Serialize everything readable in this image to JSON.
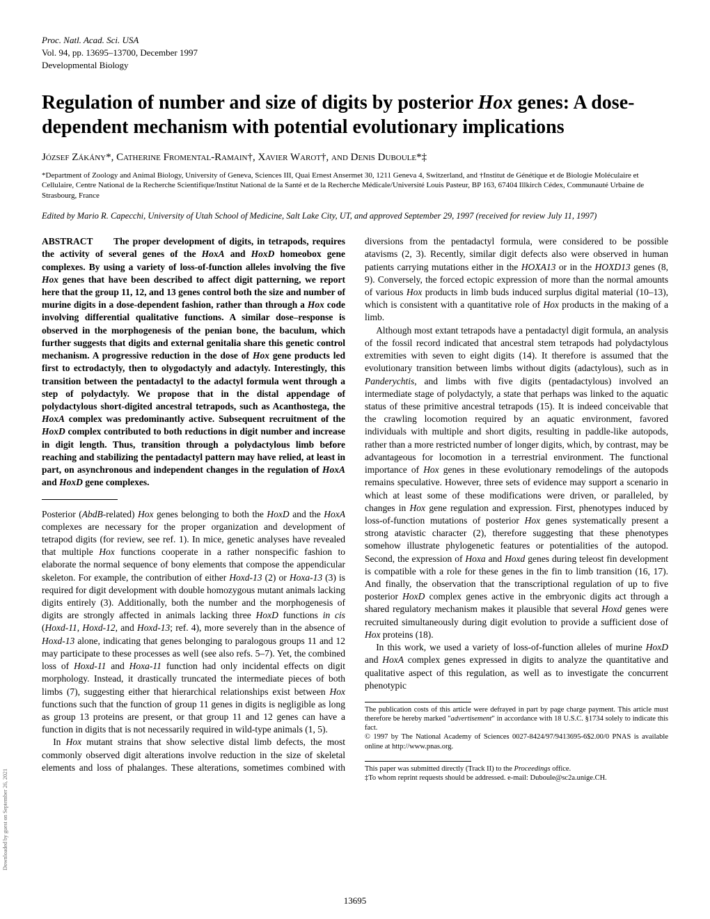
{
  "header": {
    "journal": "Proc. Natl. Acad. Sci. USA",
    "volume_line": "Vol. 94, pp. 13695–13700, December 1997",
    "department": "Developmental Biology"
  },
  "title_parts": {
    "p1": "Regulation of number and size of digits by posterior ",
    "p2": "Hox",
    "p3": " genes: A dose-dependent mechanism with potential evolutionary implications"
  },
  "authors": "József Zákány*, Catherine Fromental-Ramain†, Xavier Warot†, and Denis Duboule*‡",
  "affiliations": "*Department of Zoology and Animal Biology, University of Geneva, Sciences III, Quai Ernest Ansermet 30, 1211 Geneva 4, Switzerland, and †Institut de Génétique et de Biologie Moléculaire et Cellulaire, Centre National de la Recherche Scientifique/Institut National de la Santé et de la Recherche Médicale/Université Louis Pasteur, BP 163, 67404 Illkirch Cédex, Communauté Urbaine de Strasbourg, France",
  "edited_by": "Edited by Mario R. Capecchi, University of Utah School of Medicine, Salt Lake City, UT, and approved September 29, 1997 (received for review July 11, 1997)",
  "abstract": {
    "label": "ABSTRACT",
    "t1": "The proper development of digits, in tetrapods, requires the activity of several genes of the ",
    "t2": "HoxA",
    "t3": " and ",
    "t4": "HoxD",
    "t5": " homeobox gene complexes. By using a variety of loss-of-function alleles involving the five ",
    "t6": "Hox",
    "t7": " genes that have been described to affect digit patterning, we report here that the group 11, 12, and 13 genes control both the size and number of murine digits in a dose-dependent fashion, rather than through a ",
    "t8": "Hox",
    "t9": " code involving differential qualitative functions. A similar dose–response is observed in the morphogenesis of the penian bone, the baculum, which further suggests that digits and external genitalia share this genetic control mechanism. A progressive reduction in the dose of ",
    "t10": "Hox",
    "t11": " gene products led first to ectrodactyly, then to olygodactyly and adactyly. Interestingly, this transition between the pentadactyl to the adactyl formula went through a step of polydactyly. We propose that in the distal appendage of polydactylous short-digited ancestral tetrapods, such as Acanthostega, the ",
    "t12": "HoxA",
    "t13": " complex was predominantly active. Subsequent recruitment of the ",
    "t14": "HoxD",
    "t15": " complex contributed to both reductions in digit number and increase in digit length. Thus, transition through a polydactylous limb before reaching and stabilizing the pentadactyl pattern may have relied, at least in part, on asynchronous and independent changes in the regulation of ",
    "t16": "HoxA",
    "t17": " and ",
    "t18": "HoxD",
    "t19": " gene complexes."
  },
  "body": {
    "p1a": "Posterior (",
    "p1b": "AbdB",
    "p1c": "-related) ",
    "p1d": "Hox",
    "p1e": " genes belonging to both the ",
    "p1f": "HoxD",
    "p1g": " and the ",
    "p1h": "HoxA",
    "p1i": " complexes are necessary for the proper organization and development of tetrapod digits (for review, see ref. 1). In mice, genetic analyses have revealed that multiple ",
    "p1j": "Hox",
    "p1k": " functions cooperate in a rather nonspecific fashion to elaborate the normal sequence of bony elements that compose the appendicular skeleton. For example, the contribution of either ",
    "p1l": "Hoxd-13",
    "p1m": " (2) or ",
    "p1n": "Hoxa-13",
    "p1o": " (3) is required for digit development with double homozygous mutant animals lacking digits entirely (3). Additionally, both the number and the morphogenesis of digits are strongly affected in animals lacking three ",
    "p1p": "HoxD",
    "p1q": " functions ",
    "p1r": "in cis",
    "p1s": " (",
    "p1t": "Hoxd-11",
    "p1u": ", ",
    "p1v": "Hoxd-12",
    "p1w": ", and ",
    "p1x": "Hoxd-13",
    "p1y": "; ref. 4), more severely than in the absence of ",
    "p1z": "Hoxd-13",
    "p1aa": " alone, indicating that genes belonging to paralogous groups 11 and 12 may participate to these processes as well (see also refs. 5–7). Yet, the combined loss of ",
    "p1ab": "Hoxd-11",
    "p1ac": " and ",
    "p1ad": "Hoxa-11",
    "p1ae": " function had only incidental effects on digit morphology. Instead, it drastically truncated the intermediate pieces of both limbs (7), suggesting either that hierarchical relationships exist between ",
    "p1af": "Hox",
    "p1ag": " functions such that the function of group 11 genes in digits is negligible as long as group 13 proteins are present, or that group 11 and 12 genes can have a function in digits that is not necessarily required in wild-type animals (1, 5).",
    "p2a": "In ",
    "p2b": "Hox",
    "p2c": " mutant strains that show selective distal limb defects, the most commonly observed digit alterations involve reduction in the size of skeletal elements and loss of phalanges. These alterations, sometimes combined with diversions from the pentadactyl formula, were considered to be possible atavisms (2, 3). Recently, similar digit defects also were observed in human patients carrying mutations either in the ",
    "p2d": "HOXA13",
    "p2e": " or in the ",
    "p2f": "HOXD13",
    "p2g": " genes (8, 9). Conversely, the forced ectopic expression of more than the normal amounts of various ",
    "p2h": "Hox",
    "p2i": " products in limb buds induced surplus digital material (10–13), which is consistent with a quantitative role of ",
    "p2j": "Hox",
    "p2k": " products in the making of a limb.",
    "p3a": "Although most extant tetrapods have a pentadactyl digit formula, an analysis of the fossil record indicated that ancestral stem tetrapods had polydactylous extremities with seven to eight digits (14). It therefore is assumed that the evolutionary transition between limbs without digits (adactylous), such as in ",
    "p3b": "Panderychtis",
    "p3c": ", and limbs with five digits (pentadactylous) involved an intermediate stage of polydactyly, a state that perhaps was linked to the aquatic status of these primitive ancestral tetrapods (15). It is indeed conceivable that the crawling locomotion required by an aquatic environment, favored individuals with multiple and short digits, resulting in paddle-like autopods, rather than a more restricted number of longer digits, which, by contrast, may be advantageous for locomotion in a terrestrial environment. The functional importance of ",
    "p3d": "Hox",
    "p3e": " genes in these evolutionary remodelings of the autopods remains speculative. However, three sets of evidence may support a scenario in which at least some of these modifications were driven, or paralleled, by changes in ",
    "p3f": "Hox",
    "p3g": " gene regulation and expression. First, phenotypes induced by loss-of-function mutations of posterior ",
    "p3h": "Hox",
    "p3i": " genes systematically present a strong atavistic character (2), therefore suggesting that these phenotypes somehow illustrate phylogenetic features or potentialities of the autopod. Second, the expression of ",
    "p3j": "Hoxa",
    "p3k": " and ",
    "p3l": "Hoxd",
    "p3m": " genes during teleost fin development is compatible with a role for these genes in the fin to limb transition (16, 17). And finally, the observation that the transcriptional regulation of up to five posterior ",
    "p3n": "HoxD",
    "p3o": " complex genes active in the embryonic digits act through a shared regulatory mechanism makes it plausible that several ",
    "p3p": "Hoxd",
    "p3q": " genes were recruited simultaneously during digit evolution to provide a sufficient dose of ",
    "p3r": "Hox",
    "p3s": " proteins (18).",
    "p4a": "In this work, we used a variety of loss-of-function alleles of murine ",
    "p4b": "HoxD",
    "p4c": " and ",
    "p4d": "HoxA",
    "p4e": " complex genes expressed in digits to analyze the quantitative and qualitative aspect of this regulation, as well as to investigate the concurrent phenotypic"
  },
  "footnotes": {
    "left1a": "The publication costs of this article were defrayed in part by page charge payment. This article must therefore be hereby marked \"",
    "left1b": "advertisement",
    "left1c": "\" in accordance with 18 U.S.C. §1734 solely to indicate this fact.",
    "left2": "© 1997 by The National Academy of Sciences 0027-8424/97/9413695-6$2.00/0 PNAS is available online at http://www.pnas.org.",
    "right1a": "This paper was submitted directly (Track II) to the ",
    "right1b": "Proceedings",
    "right1c": " office.",
    "right2": "‡To whom reprint requests should be addressed. e-mail: Duboule@sc2a.unige.CH."
  },
  "page_number": "13695",
  "side_text": "Downloaded by guest on September 26, 2021"
}
